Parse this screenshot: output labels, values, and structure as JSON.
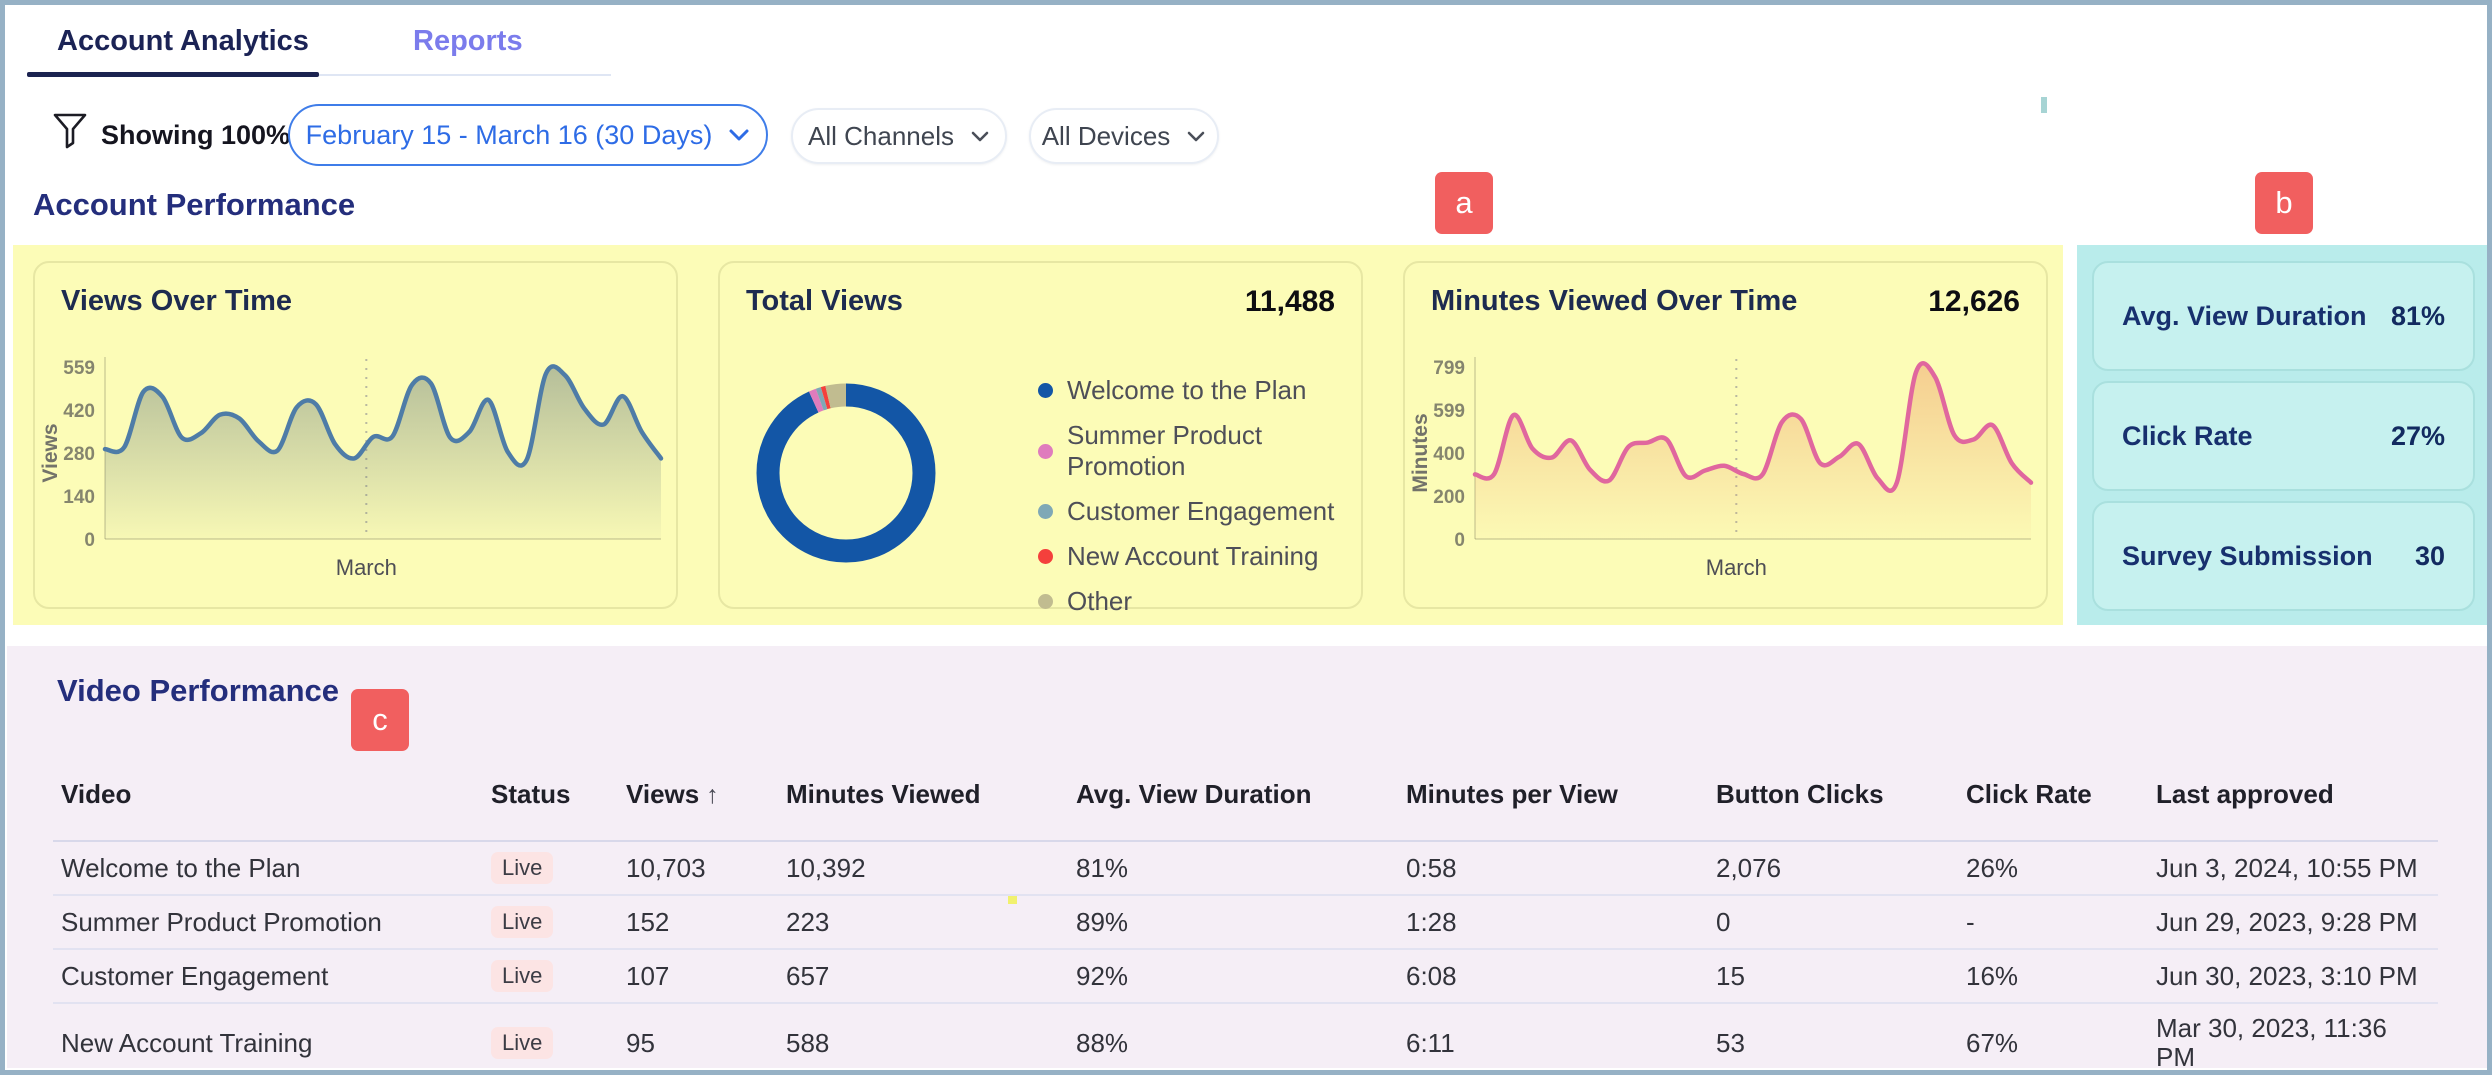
{
  "tabs": {
    "account_analytics": "Account Analytics",
    "reports": "Reports"
  },
  "filters": {
    "showing": "Showing 100%",
    "date_range": "February 15 - March 16 (30 Days)",
    "channels": "All Channels",
    "devices": "All Devices"
  },
  "annotations": {
    "a": "a",
    "b": "b",
    "c": "c"
  },
  "account_performance": {
    "title": "Account Performance"
  },
  "metrics": [
    {
      "label": "Avg. View Duration",
      "value": "81%"
    },
    {
      "label": "Click Rate",
      "value": "27%"
    },
    {
      "label": "Survey Submission",
      "value": "30"
    }
  ],
  "video_performance": {
    "title": "Video Performance",
    "columns": [
      "Video",
      "Status",
      "Views",
      "Minutes Viewed",
      "Avg. View Duration",
      "Minutes per View",
      "Button Clicks",
      "Click Rate",
      "Last approved"
    ],
    "sort_column": "Views",
    "sort_icon": "↑",
    "rows": [
      {
        "video": "Welcome to the Plan",
        "status": "Live",
        "views": "10,703",
        "minutes_viewed": "10,392",
        "avg_view_duration": "81%",
        "minutes_per_view": "0:58",
        "button_clicks": "2,076",
        "click_rate": "26%",
        "last_approved": "Jun 3, 2024, 10:55 PM"
      },
      {
        "video": "Summer Product Promotion",
        "status": "Live",
        "views": "152",
        "minutes_viewed": "223",
        "avg_view_duration": "89%",
        "minutes_per_view": "1:28",
        "button_clicks": "0",
        "click_rate": "-",
        "last_approved": "Jun 29, 2023, 9:28 PM"
      },
      {
        "video": "Customer Engagement",
        "status": "Live",
        "views": "107",
        "minutes_viewed": "657",
        "avg_view_duration": "92%",
        "minutes_per_view": "6:08",
        "button_clicks": "15",
        "click_rate": "16%",
        "last_approved": "Jun 30, 2023, 3:10 PM"
      },
      {
        "video": "New Account Training",
        "status": "Live",
        "views": "95",
        "minutes_viewed": "588",
        "avg_view_duration": "88%",
        "minutes_per_view": "6:11",
        "button_clicks": "53",
        "click_rate": "67%",
        "last_approved": "Mar 30, 2023, 11:36 PM"
      }
    ]
  },
  "colors": {
    "frame_border": "#96b1c5",
    "highlight_yellow": "#fcfcb7",
    "highlight_teal": "#b9eceb",
    "highlight_lavender": "#f5eef6",
    "annotation_red": "#f15f5f",
    "active_tab_navy": "#1b2355",
    "reports_purple": "#7b7cec",
    "date_pill_blue": "#2e6ce6",
    "heading_navy": "#242e7c"
  },
  "chart_data": [
    {
      "id": "views",
      "type": "area",
      "title": "Views Over Time",
      "ylabel": "Views",
      "xlabel": "March",
      "yticks": [
        0,
        140,
        280,
        420,
        559
      ],
      "ylim": [
        0,
        559
      ],
      "x_range": "daily values, February 15 - March 16",
      "march_x_frac": 0.47,
      "line_color": "#4e7ca7",
      "fill_top": "rgba(95,115,118,0.45)",
      "fill_bottom": "rgba(95,115,118,0.03)",
      "values": [
        292,
        298,
        478,
        462,
        330,
        344,
        404,
        392,
        318,
        288,
        428,
        438,
        308,
        262,
        332,
        334,
        500,
        506,
        330,
        348,
        452,
        284,
        258,
        538,
        532,
        424,
        372,
        464,
        348,
        262
      ]
    },
    {
      "id": "totalviews",
      "type": "donut",
      "title": "Total Views",
      "total": 11488,
      "total_label": "11,488",
      "legend_position": "right",
      "series": [
        {
          "name": "Welcome to the Plan",
          "value": 10703,
          "color": "#1356a6"
        },
        {
          "name": "Summer Product Promotion",
          "value": 152,
          "color": "#df7cbd"
        },
        {
          "name": "Customer Engagement",
          "value": 107,
          "color": "#7fa8b6"
        },
        {
          "name": "New Account Training",
          "value": 95,
          "color": "#f4403c"
        },
        {
          "name": "Other",
          "value": 431,
          "color": "#c1bc90"
        }
      ]
    },
    {
      "id": "minutes",
      "type": "area",
      "title": "Minutes Viewed Over Time",
      "total_label": "12,626",
      "ylabel": "Minutes",
      "xlabel": "March",
      "yticks": [
        0,
        200,
        400,
        599,
        799
      ],
      "ylim": [
        0,
        799
      ],
      "x_range": "daily values, February 15 - March 16",
      "march_x_frac": 0.47,
      "line_color": "#e0679e",
      "fill_top": "rgba(238,160,105,0.50)",
      "fill_bottom": "rgba(238,160,105,0.03)",
      "values": [
        300,
        302,
        575,
        420,
        378,
        458,
        322,
        272,
        428,
        448,
        462,
        292,
        318,
        340,
        302,
        300,
        542,
        558,
        352,
        382,
        442,
        282,
        262,
        775,
        752,
        482,
        462,
        528,
        352,
        262
      ]
    }
  ]
}
